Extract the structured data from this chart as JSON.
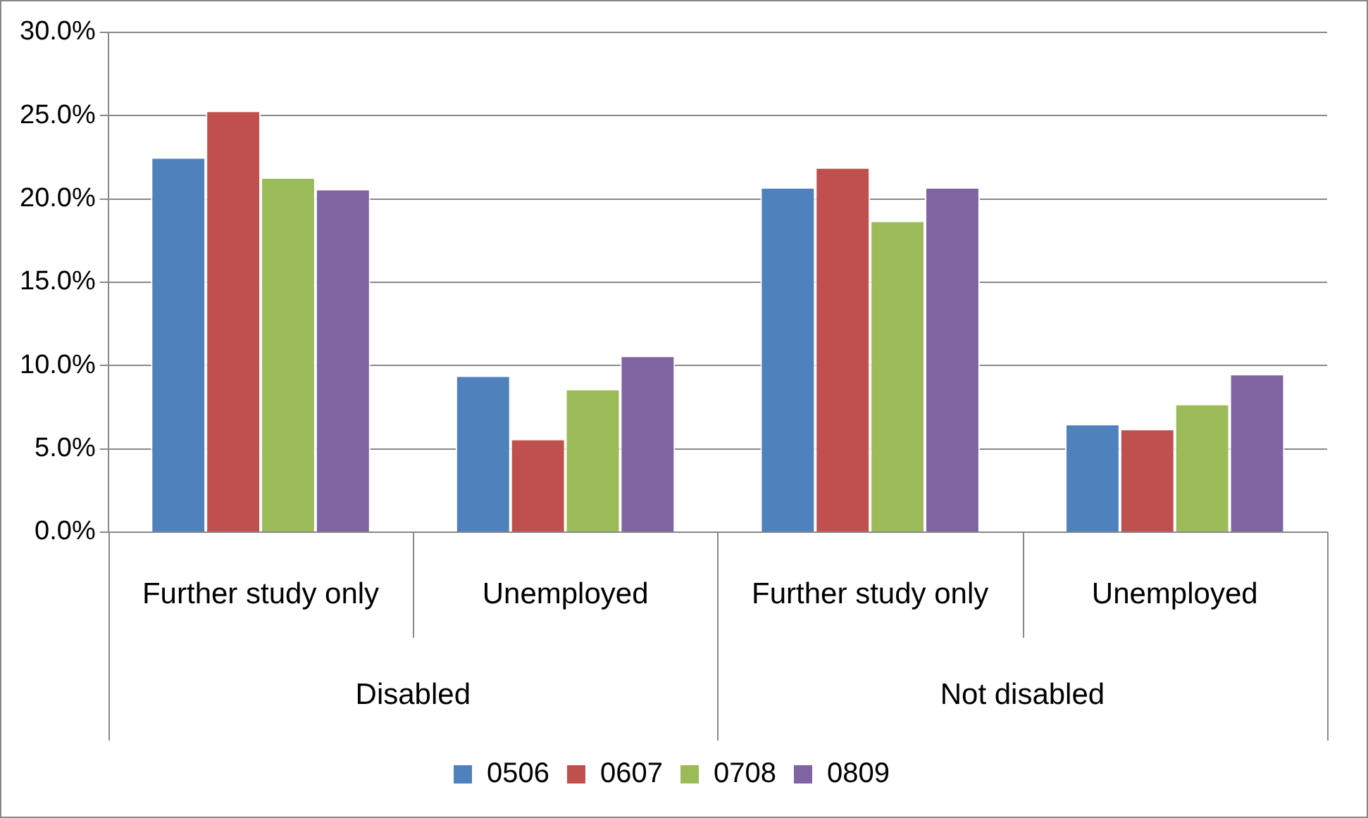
{
  "chart_data": {
    "type": "bar",
    "categories": [
      "Further study only",
      "Unemployed",
      "Further study only",
      "Unemployed"
    ],
    "series": [
      {
        "name": "0506",
        "color": "#4f81bd",
        "values": [
          22.5,
          9.4,
          20.7,
          6.5
        ]
      },
      {
        "name": "0607",
        "color": "#c0504d",
        "values": [
          25.3,
          5.6,
          21.9,
          6.2
        ]
      },
      {
        "name": "0708",
        "color": "#9bbb59",
        "values": [
          21.3,
          8.6,
          18.7,
          7.7
        ]
      },
      {
        "name": "0809",
        "color": "#8064a2",
        "values": [
          20.6,
          10.6,
          20.7,
          9.5
        ]
      }
    ],
    "ylim": [
      0,
      30
    ],
    "yticks": [
      {
        "value": 0,
        "label": "0.0%"
      },
      {
        "value": 5,
        "label": "5.0%"
      },
      {
        "value": 10,
        "label": "10.0%"
      },
      {
        "value": 15,
        "label": "15.0%"
      },
      {
        "value": 20,
        "label": "20.0%"
      },
      {
        "value": 25,
        "label": "25.0%"
      },
      {
        "value": 30,
        "label": "30.0%"
      }
    ],
    "annotations": [
      "Disabled",
      "Not disabled"
    ],
    "grid": "y",
    "legend": "bottom"
  }
}
